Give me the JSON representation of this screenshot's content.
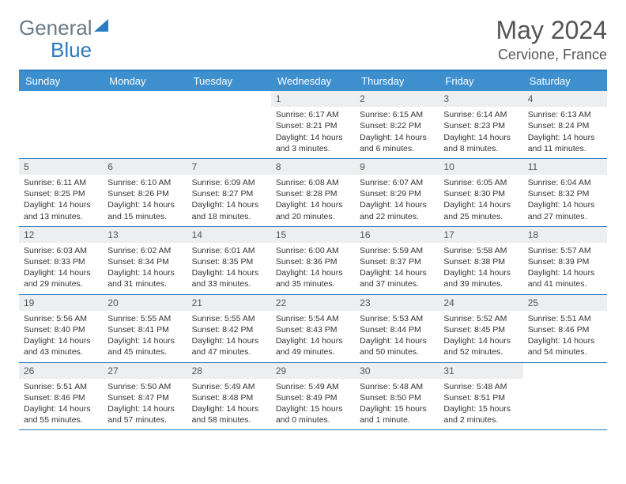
{
  "logo": {
    "text1": "General",
    "text2": "Blue"
  },
  "title": "May 2024",
  "location": "Cervione, France",
  "day_names": [
    "Sunday",
    "Monday",
    "Tuesday",
    "Wednesday",
    "Thursday",
    "Friday",
    "Saturday"
  ],
  "colors": {
    "header_bar": "#3d8fce",
    "border": "#2b7bbf",
    "daynum_bg": "#eceef0",
    "text": "#333333",
    "logo_gray": "#6b7a85"
  },
  "weeks": [
    [
      null,
      null,
      null,
      {
        "n": "1",
        "sr": "Sunrise: 6:17 AM",
        "ss": "Sunset: 8:21 PM",
        "dl": "Daylight: 14 hours and 3 minutes."
      },
      {
        "n": "2",
        "sr": "Sunrise: 6:15 AM",
        "ss": "Sunset: 8:22 PM",
        "dl": "Daylight: 14 hours and 6 minutes."
      },
      {
        "n": "3",
        "sr": "Sunrise: 6:14 AM",
        "ss": "Sunset: 8:23 PM",
        "dl": "Daylight: 14 hours and 8 minutes."
      },
      {
        "n": "4",
        "sr": "Sunrise: 6:13 AM",
        "ss": "Sunset: 8:24 PM",
        "dl": "Daylight: 14 hours and 11 minutes."
      }
    ],
    [
      {
        "n": "5",
        "sr": "Sunrise: 6:11 AM",
        "ss": "Sunset: 8:25 PM",
        "dl": "Daylight: 14 hours and 13 minutes."
      },
      {
        "n": "6",
        "sr": "Sunrise: 6:10 AM",
        "ss": "Sunset: 8:26 PM",
        "dl": "Daylight: 14 hours and 15 minutes."
      },
      {
        "n": "7",
        "sr": "Sunrise: 6:09 AM",
        "ss": "Sunset: 8:27 PM",
        "dl": "Daylight: 14 hours and 18 minutes."
      },
      {
        "n": "8",
        "sr": "Sunrise: 6:08 AM",
        "ss": "Sunset: 8:28 PM",
        "dl": "Daylight: 14 hours and 20 minutes."
      },
      {
        "n": "9",
        "sr": "Sunrise: 6:07 AM",
        "ss": "Sunset: 8:29 PM",
        "dl": "Daylight: 14 hours and 22 minutes."
      },
      {
        "n": "10",
        "sr": "Sunrise: 6:05 AM",
        "ss": "Sunset: 8:30 PM",
        "dl": "Daylight: 14 hours and 25 minutes."
      },
      {
        "n": "11",
        "sr": "Sunrise: 6:04 AM",
        "ss": "Sunset: 8:32 PM",
        "dl": "Daylight: 14 hours and 27 minutes."
      }
    ],
    [
      {
        "n": "12",
        "sr": "Sunrise: 6:03 AM",
        "ss": "Sunset: 8:33 PM",
        "dl": "Daylight: 14 hours and 29 minutes."
      },
      {
        "n": "13",
        "sr": "Sunrise: 6:02 AM",
        "ss": "Sunset: 8:34 PM",
        "dl": "Daylight: 14 hours and 31 minutes."
      },
      {
        "n": "14",
        "sr": "Sunrise: 6:01 AM",
        "ss": "Sunset: 8:35 PM",
        "dl": "Daylight: 14 hours and 33 minutes."
      },
      {
        "n": "15",
        "sr": "Sunrise: 6:00 AM",
        "ss": "Sunset: 8:36 PM",
        "dl": "Daylight: 14 hours and 35 minutes."
      },
      {
        "n": "16",
        "sr": "Sunrise: 5:59 AM",
        "ss": "Sunset: 8:37 PM",
        "dl": "Daylight: 14 hours and 37 minutes."
      },
      {
        "n": "17",
        "sr": "Sunrise: 5:58 AM",
        "ss": "Sunset: 8:38 PM",
        "dl": "Daylight: 14 hours and 39 minutes."
      },
      {
        "n": "18",
        "sr": "Sunrise: 5:57 AM",
        "ss": "Sunset: 8:39 PM",
        "dl": "Daylight: 14 hours and 41 minutes."
      }
    ],
    [
      {
        "n": "19",
        "sr": "Sunrise: 5:56 AM",
        "ss": "Sunset: 8:40 PM",
        "dl": "Daylight: 14 hours and 43 minutes."
      },
      {
        "n": "20",
        "sr": "Sunrise: 5:55 AM",
        "ss": "Sunset: 8:41 PM",
        "dl": "Daylight: 14 hours and 45 minutes."
      },
      {
        "n": "21",
        "sr": "Sunrise: 5:55 AM",
        "ss": "Sunset: 8:42 PM",
        "dl": "Daylight: 14 hours and 47 minutes."
      },
      {
        "n": "22",
        "sr": "Sunrise: 5:54 AM",
        "ss": "Sunset: 8:43 PM",
        "dl": "Daylight: 14 hours and 49 minutes."
      },
      {
        "n": "23",
        "sr": "Sunrise: 5:53 AM",
        "ss": "Sunset: 8:44 PM",
        "dl": "Daylight: 14 hours and 50 minutes."
      },
      {
        "n": "24",
        "sr": "Sunrise: 5:52 AM",
        "ss": "Sunset: 8:45 PM",
        "dl": "Daylight: 14 hours and 52 minutes."
      },
      {
        "n": "25",
        "sr": "Sunrise: 5:51 AM",
        "ss": "Sunset: 8:46 PM",
        "dl": "Daylight: 14 hours and 54 minutes."
      }
    ],
    [
      {
        "n": "26",
        "sr": "Sunrise: 5:51 AM",
        "ss": "Sunset: 8:46 PM",
        "dl": "Daylight: 14 hours and 55 minutes."
      },
      {
        "n": "27",
        "sr": "Sunrise: 5:50 AM",
        "ss": "Sunset: 8:47 PM",
        "dl": "Daylight: 14 hours and 57 minutes."
      },
      {
        "n": "28",
        "sr": "Sunrise: 5:49 AM",
        "ss": "Sunset: 8:48 PM",
        "dl": "Daylight: 14 hours and 58 minutes."
      },
      {
        "n": "29",
        "sr": "Sunrise: 5:49 AM",
        "ss": "Sunset: 8:49 PM",
        "dl": "Daylight: 15 hours and 0 minutes."
      },
      {
        "n": "30",
        "sr": "Sunrise: 5:48 AM",
        "ss": "Sunset: 8:50 PM",
        "dl": "Daylight: 15 hours and 1 minute."
      },
      {
        "n": "31",
        "sr": "Sunrise: 5:48 AM",
        "ss": "Sunset: 8:51 PM",
        "dl": "Daylight: 15 hours and 2 minutes."
      },
      null
    ]
  ]
}
